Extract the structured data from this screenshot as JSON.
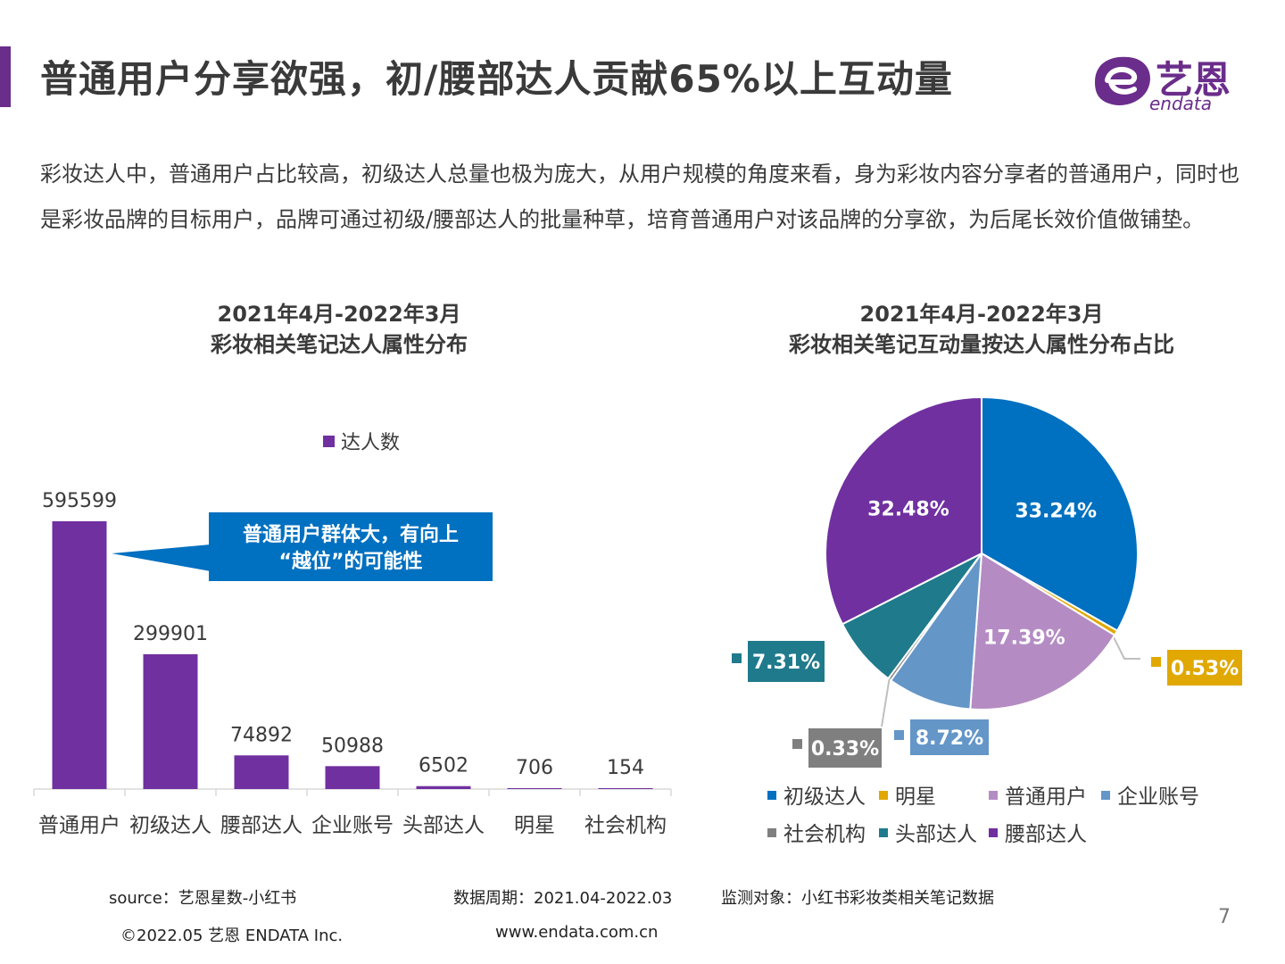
{
  "page": {
    "title": "普通用户分享欲强，初/腰部达人贡献65%以上互动量",
    "logo_cn": "艺恩",
    "logo_en": "endata",
    "intro": "彩妆达人中，普通用户占比较高，初级达人总量也极为庞大，从用户规模的角度来看，身为彩妆内容分享者的普通用户，同时也是彩妆品牌的目标用户，品牌可通过初级/腰部达人的批量种草，培育普通用户对该品牌的分享欲，为后尾长效价值做铺垫。",
    "page_number": "7",
    "accent_color": "#6b2d8b"
  },
  "footer": {
    "source": "source：艺恩星数-小红书",
    "period": "数据周期：2021.04-2022.03",
    "target": "监测对象：小红书彩妆类相关笔记数据",
    "copyright": "©2022.05 艺恩 ENDATA Inc.",
    "website": "www.endata.com.cn"
  },
  "chart_data": [
    {
      "type": "bar",
      "title_line1": "2021年4月-2022年3月",
      "title_line2": "彩妆相关笔记达人属性分布",
      "legend": "达人数",
      "color": "#7030a0",
      "categories": [
        "普通用户",
        "初级达人",
        "腰部达人",
        "企业账号",
        "头部达人",
        "明星",
        "社会机构"
      ],
      "values": [
        595599,
        299901,
        74892,
        50988,
        6502,
        706,
        154
      ],
      "ylim": [
        0,
        595599
      ],
      "callout": {
        "line1": "普通用户群体大，有向上",
        "line2": "“越位”的可能性",
        "color": "#0070c0"
      }
    },
    {
      "type": "pie",
      "title_line1": "2021年4月-2022年3月",
      "title_line2": "彩妆相关笔记互动量按达人属性分布占比",
      "slices": [
        {
          "name": "初级达人",
          "value": 33.24,
          "label": "33.24%",
          "color": "#0070c0"
        },
        {
          "name": "明星",
          "value": 0.53,
          "label": "0.53%",
          "color": "#e0a800"
        },
        {
          "name": "普通用户",
          "value": 17.39,
          "label": "17.39%",
          "color": "#b48cc3"
        },
        {
          "name": "企业账号",
          "value": 8.72,
          "label": "8.72%",
          "color": "#6496c8"
        },
        {
          "name": "社会机构",
          "value": 0.33,
          "label": "0.33%",
          "color": "#7f7f7f"
        },
        {
          "name": "头部达人",
          "value": 7.31,
          "label": "7.31%",
          "color": "#1f7a8c"
        },
        {
          "name": "腰部达人",
          "value": 32.48,
          "label": "32.48%",
          "color": "#7030a0"
        }
      ],
      "legend_order": [
        [
          "初级达人",
          "明星",
          "普通用户",
          "企业账号"
        ],
        [
          "社会机构",
          "头部达人",
          "腰部达人"
        ]
      ]
    }
  ]
}
